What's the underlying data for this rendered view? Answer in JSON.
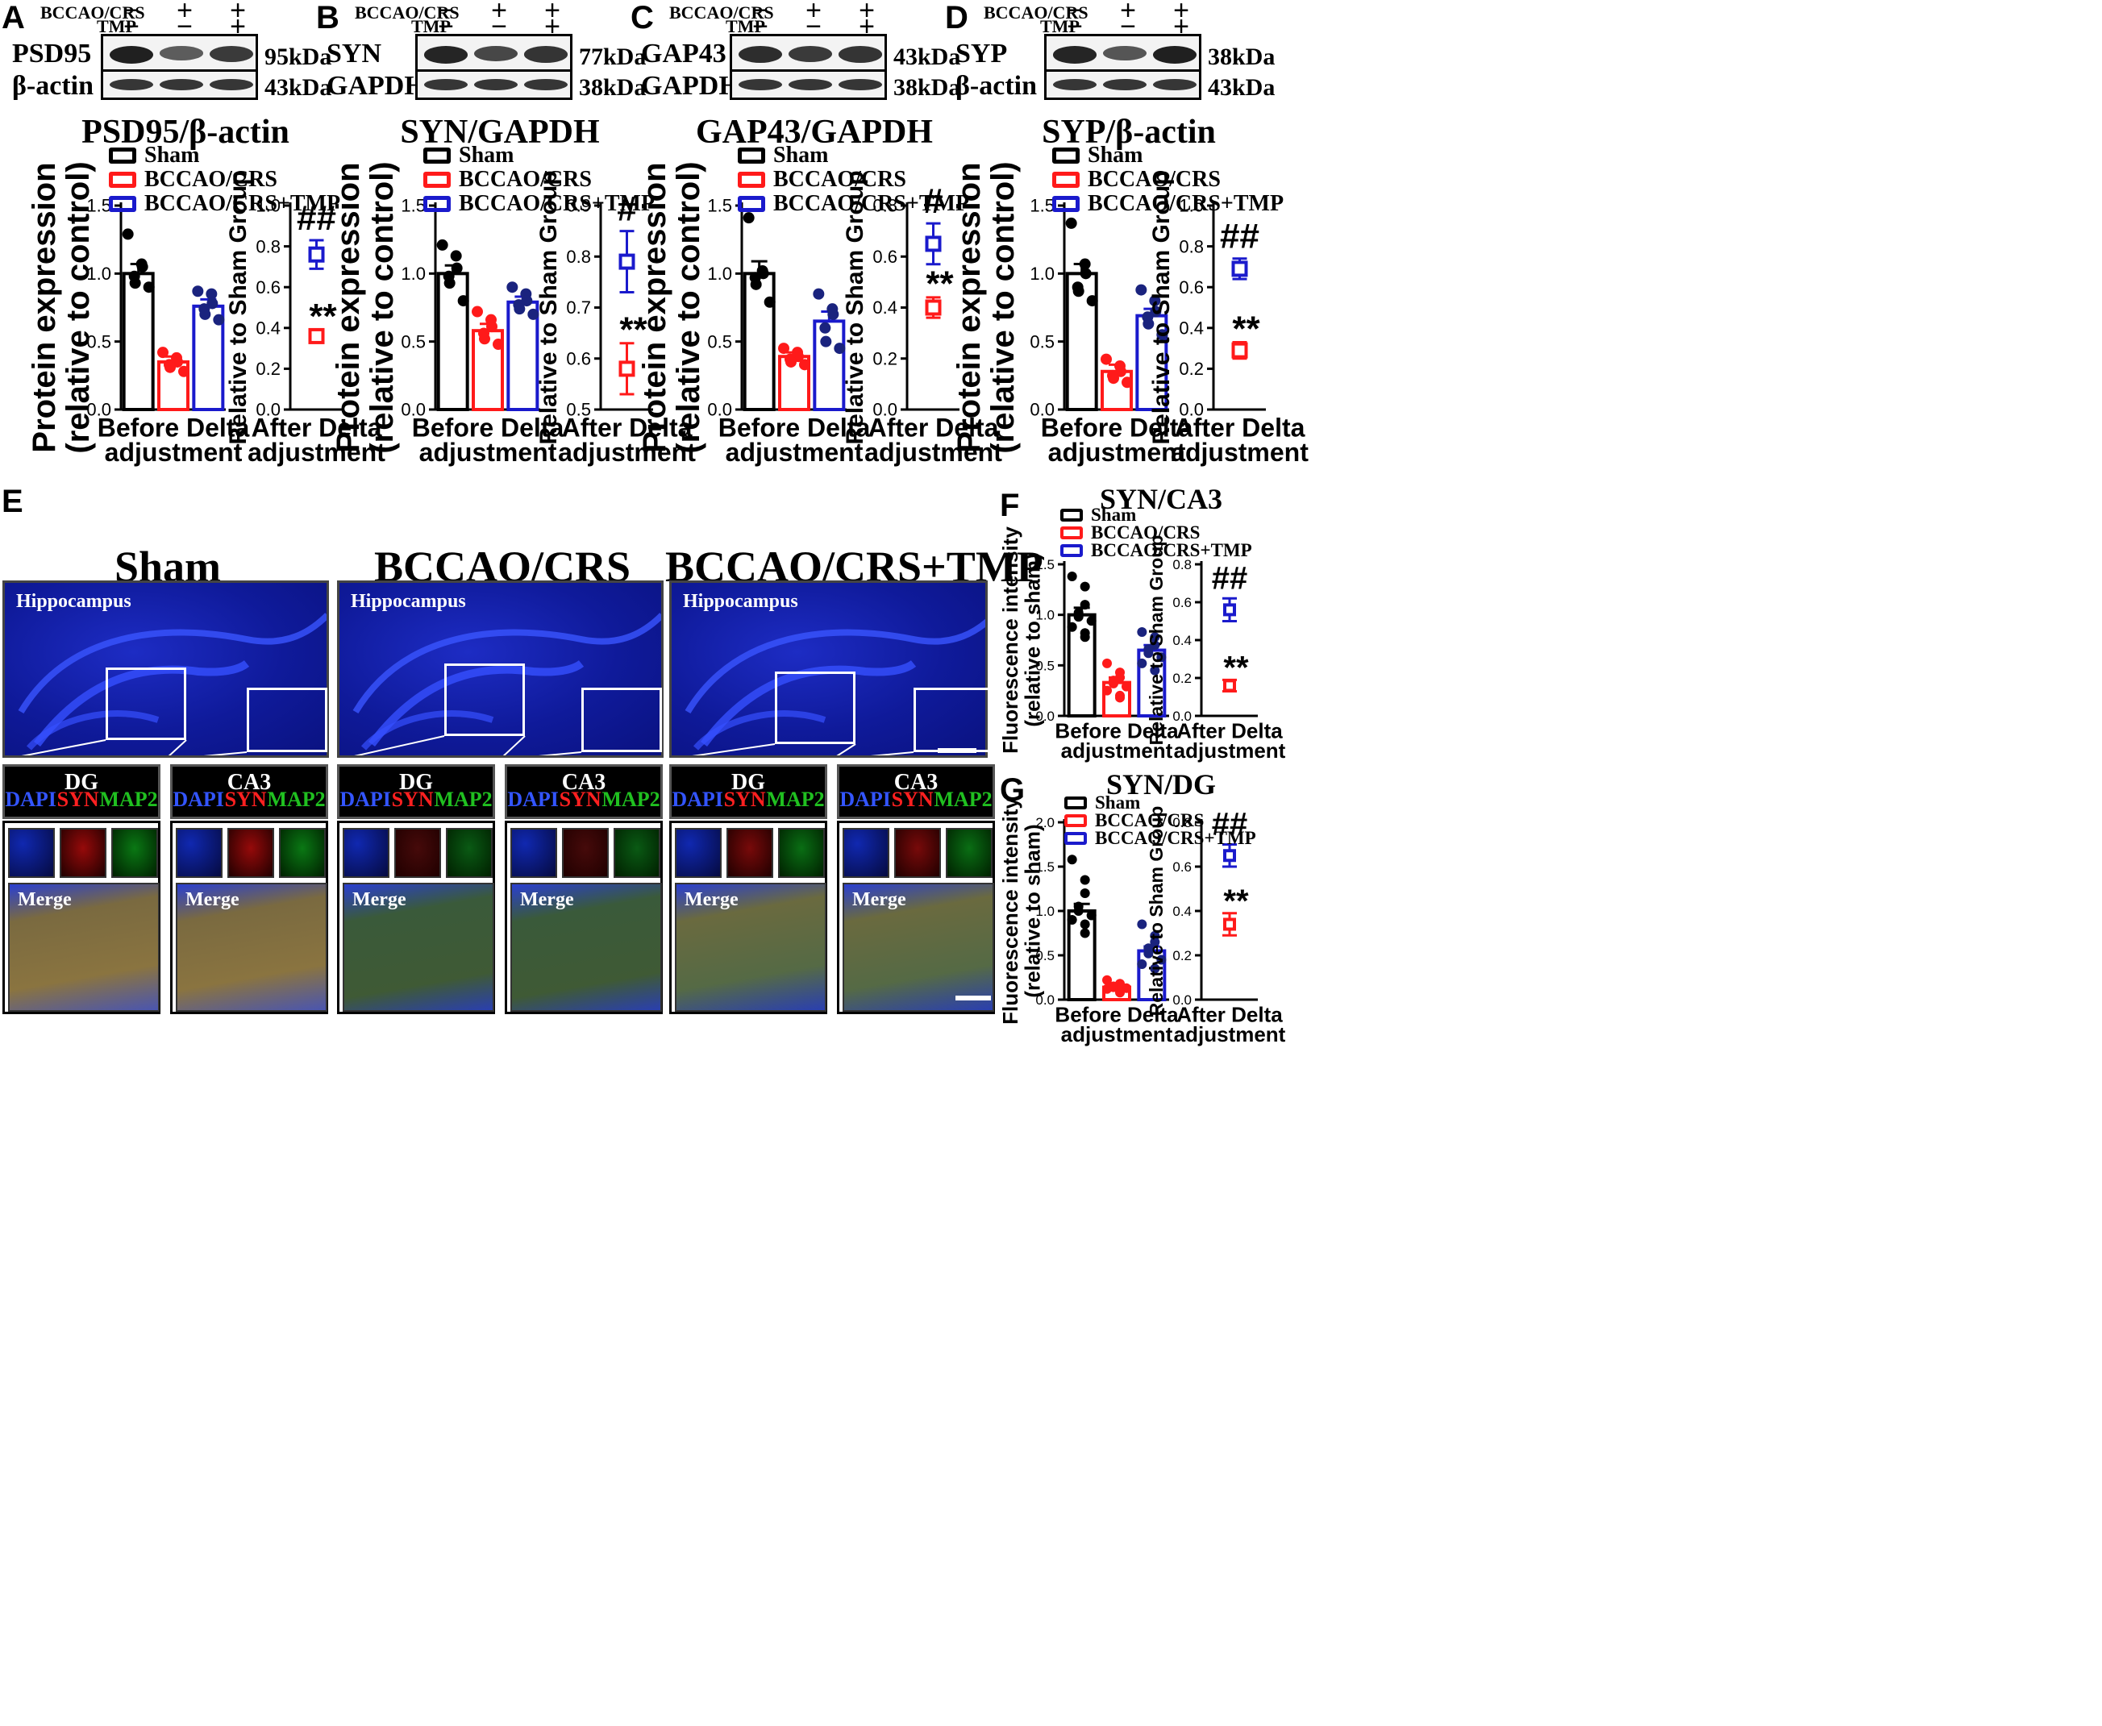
{
  "conditions": {
    "line1": "BCCAO/CRS",
    "line2": "TMP"
  },
  "signs": {
    "row1": [
      "−",
      "+",
      "+"
    ],
    "row2": [
      "−",
      "−",
      "+"
    ]
  },
  "panels": [
    {
      "letter": "A",
      "target": "PSD95",
      "target_kda": "95kDa",
      "control": "β-actin",
      "control_kda": "43kDa",
      "title": "PSD95/β-actin"
    },
    {
      "letter": "B",
      "target": "SYN",
      "target_kda": "77kDa",
      "control": "GAPDH",
      "control_kda": "38kDa",
      "title": "SYN/GAPDH"
    },
    {
      "letter": "C",
      "target": "GAP43",
      "target_kda": "43kDa",
      "control": "GAPDH",
      "control_kda": "38kDa",
      "title": "GAP43/GAPDH"
    },
    {
      "letter": "D",
      "target": "SYP",
      "target_kda": "38kDa",
      "control": "β-actin",
      "control_kda": "43kDa",
      "title": "SYP/β-actin"
    }
  ],
  "legend": [
    "Sham",
    "BCCAO/CRS",
    "BCCAO/CRS+TMP"
  ],
  "colors": {
    "sham": "#000000",
    "bccao": "#ff1a1a",
    "tmp": "#1a1acc",
    "dots_tmp": "#1a237e"
  },
  "axis_text": {
    "protein_y1": "Protein expression",
    "protein_y2": "(relative to control)",
    "fluor_y1": "Fluorescence intensity",
    "fluor_y2": "(relative to sham)",
    "rel_y": "Relative to Sham Group",
    "before_l1": "Before Delta",
    "after_l1": "After Delta",
    "adj": "adjustment"
  },
  "sig": {
    "hash2": "##",
    "hash1": "#",
    "star2": "**"
  },
  "chart_data": [
    {
      "panel": "A",
      "type": "bar",
      "categories": [
        "Sham",
        "BCCAO/CRS",
        "BCCAO/CRS+TMP"
      ],
      "values": [
        1.0,
        0.35,
        0.76
      ],
      "errors": [
        0.07,
        0.04,
        0.05
      ],
      "ylim": [
        0,
        1.5
      ],
      "yticks": [
        "0.0",
        "0.5",
        "1.0",
        "1.5"
      ],
      "points": [
        [
          1.29,
          1.07,
          1.05,
          0.98,
          0.93,
          0.9
        ],
        [
          0.42,
          0.38,
          0.35,
          0.33,
          0.31,
          0.28
        ],
        [
          0.87,
          0.85,
          0.78,
          0.74,
          0.7,
          0.66
        ]
      ],
      "delta": {
        "values": [
          0.76,
          0.36
        ],
        "errors": [
          0.07,
          0.03
        ],
        "ylim": [
          0,
          1.0
        ],
        "yticks": [
          "0.0",
          "0.2",
          "0.4",
          "0.6",
          "0.8",
          "1.0"
        ],
        "marks": [
          "##",
          "**"
        ]
      }
    },
    {
      "panel": "B",
      "type": "bar",
      "categories": [
        "Sham",
        "BCCAO/CRS",
        "BCCAO/CRS+TMP"
      ],
      "values": [
        1.0,
        0.58,
        0.79
      ],
      "errors": [
        0.06,
        0.05,
        0.04
      ],
      "ylim": [
        0,
        1.5
      ],
      "yticks": [
        "0.0",
        "0.5",
        "1.0",
        "1.5"
      ],
      "points": [
        [
          1.21,
          1.13,
          1.04,
          0.98,
          0.93,
          0.8
        ],
        [
          0.72,
          0.66,
          0.61,
          0.56,
          0.52,
          0.48
        ],
        [
          0.9,
          0.85,
          0.8,
          0.77,
          0.74,
          0.7
        ]
      ],
      "delta": {
        "values": [
          0.79,
          0.58
        ],
        "errors": [
          0.06,
          0.05
        ],
        "ylim": [
          0.5,
          0.9
        ],
        "yticks": [
          "0.5",
          "0.6",
          "0.7",
          "0.8",
          "0.9"
        ],
        "marks": [
          "#",
          "**"
        ]
      }
    },
    {
      "panel": "C",
      "type": "bar",
      "categories": [
        "Sham",
        "BCCAO/CRS",
        "BCCAO/CRS+TMP"
      ],
      "values": [
        1.0,
        0.39,
        0.65
      ],
      "errors": [
        0.09,
        0.03,
        0.07
      ],
      "ylim": [
        0,
        1.5
      ],
      "yticks": [
        "0.0",
        "0.5",
        "1.0",
        "1.5"
      ],
      "points": [
        [
          1.41,
          1.02,
          1.0,
          0.97,
          0.92,
          0.79
        ],
        [
          0.45,
          0.42,
          0.39,
          0.37,
          0.35,
          0.33
        ],
        [
          0.85,
          0.74,
          0.7,
          0.6,
          0.5,
          0.45
        ]
      ],
      "delta": {
        "values": [
          0.65,
          0.4
        ],
        "errors": [
          0.08,
          0.04
        ],
        "ylim": [
          0,
          0.8
        ],
        "yticks": [
          "0.0",
          "0.2",
          "0.4",
          "0.6",
          "0.8"
        ],
        "marks": [
          "#",
          "**"
        ]
      }
    },
    {
      "panel": "D",
      "type": "bar",
      "categories": [
        "Sham",
        "BCCAO/CRS",
        "BCCAO/CRS+TMP"
      ],
      "values": [
        1.0,
        0.28,
        0.69
      ],
      "errors": [
        0.07,
        0.05,
        0.05
      ],
      "ylim": [
        0,
        1.5
      ],
      "yticks": [
        "0.0",
        "0.5",
        "1.0",
        "1.5"
      ],
      "points": [
        [
          1.37,
          1.07,
          1.0,
          0.9,
          0.87,
          0.8
        ],
        [
          0.37,
          0.32,
          0.28,
          0.25,
          0.23,
          0.2
        ],
        [
          0.88,
          0.8,
          0.72,
          0.68,
          0.63,
          0.55
        ]
      ],
      "delta": {
        "values": [
          0.69,
          0.29
        ],
        "errors": [
          0.05,
          0.04
        ],
        "ylim": [
          0,
          1.0
        ],
        "yticks": [
          "0.0",
          "0.2",
          "0.4",
          "0.6",
          "0.8",
          "1.0"
        ],
        "marks": [
          "##",
          "**"
        ]
      }
    },
    {
      "panel": "F",
      "title": "SYN/CA3",
      "type": "bar",
      "categories": [
        "Sham",
        "BCCAO/CRS",
        "BCCAO/CRS+TMP"
      ],
      "values": [
        1.0,
        0.33,
        0.65
      ],
      "errors": [
        0.07,
        0.05,
        0.05
      ],
      "ylim": [
        0,
        1.5
      ],
      "yticks": [
        "0.0",
        "0.5",
        "1.0",
        "1.5"
      ],
      "points": [
        [
          1.38,
          1.28,
          1.1,
          1.02,
          0.98,
          0.94,
          0.88,
          0.82,
          0.78
        ],
        [
          0.52,
          0.43,
          0.38,
          0.35,
          0.32,
          0.29,
          0.25,
          0.2,
          0.18
        ],
        [
          0.83,
          0.78,
          0.7,
          0.66,
          0.62,
          0.58,
          0.52,
          0.45
        ]
      ],
      "delta": {
        "values": [
          0.56,
          0.16
        ],
        "errors": [
          0.06,
          0.03
        ],
        "ylim": [
          0,
          0.8
        ],
        "yticks": [
          "0.0",
          "0.2",
          "0.4",
          "0.6",
          "0.8"
        ],
        "marks": [
          "##",
          "**"
        ]
      }
    },
    {
      "panel": "G",
      "title": "SYN/DG",
      "type": "bar",
      "categories": [
        "Sham",
        "BCCAO/CRS",
        "BCCAO/CRS+TMP"
      ],
      "values": [
        1.0,
        0.14,
        0.55
      ],
      "errors": [
        0.08,
        0.02,
        0.05
      ],
      "ylim": [
        0,
        2.0
      ],
      "yticks": [
        "0.0",
        "0.5",
        "1.0",
        "1.5",
        "2.0"
      ],
      "points": [
        [
          1.58,
          1.35,
          1.2,
          1.05,
          1.0,
          0.95,
          0.9,
          0.85,
          0.75
        ],
        [
          0.22,
          0.18,
          0.16,
          0.15,
          0.14,
          0.13,
          0.12,
          0.1,
          0.08
        ],
        [
          0.85,
          0.72,
          0.65,
          0.58,
          0.52,
          0.45,
          0.4,
          0.35
        ]
      ],
      "delta": {
        "values": [
          0.65,
          0.34
        ],
        "errors": [
          0.05,
          0.05
        ],
        "ylim": [
          0,
          0.8
        ],
        "yticks": [
          "0.0",
          "0.2",
          "0.4",
          "0.6",
          "0.8"
        ],
        "marks": [
          "##",
          "**"
        ]
      }
    }
  ],
  "section_e": {
    "letter": "E",
    "groups": [
      "Sham",
      "BCCAO/CRS",
      "BCCAO/CRS+TMP"
    ],
    "hip_label": "Hippocampus",
    "regions": [
      "DG",
      "CA3"
    ],
    "channels": [
      "DAPI",
      "SYN",
      "MAP2"
    ],
    "merge_label": "Merge"
  }
}
